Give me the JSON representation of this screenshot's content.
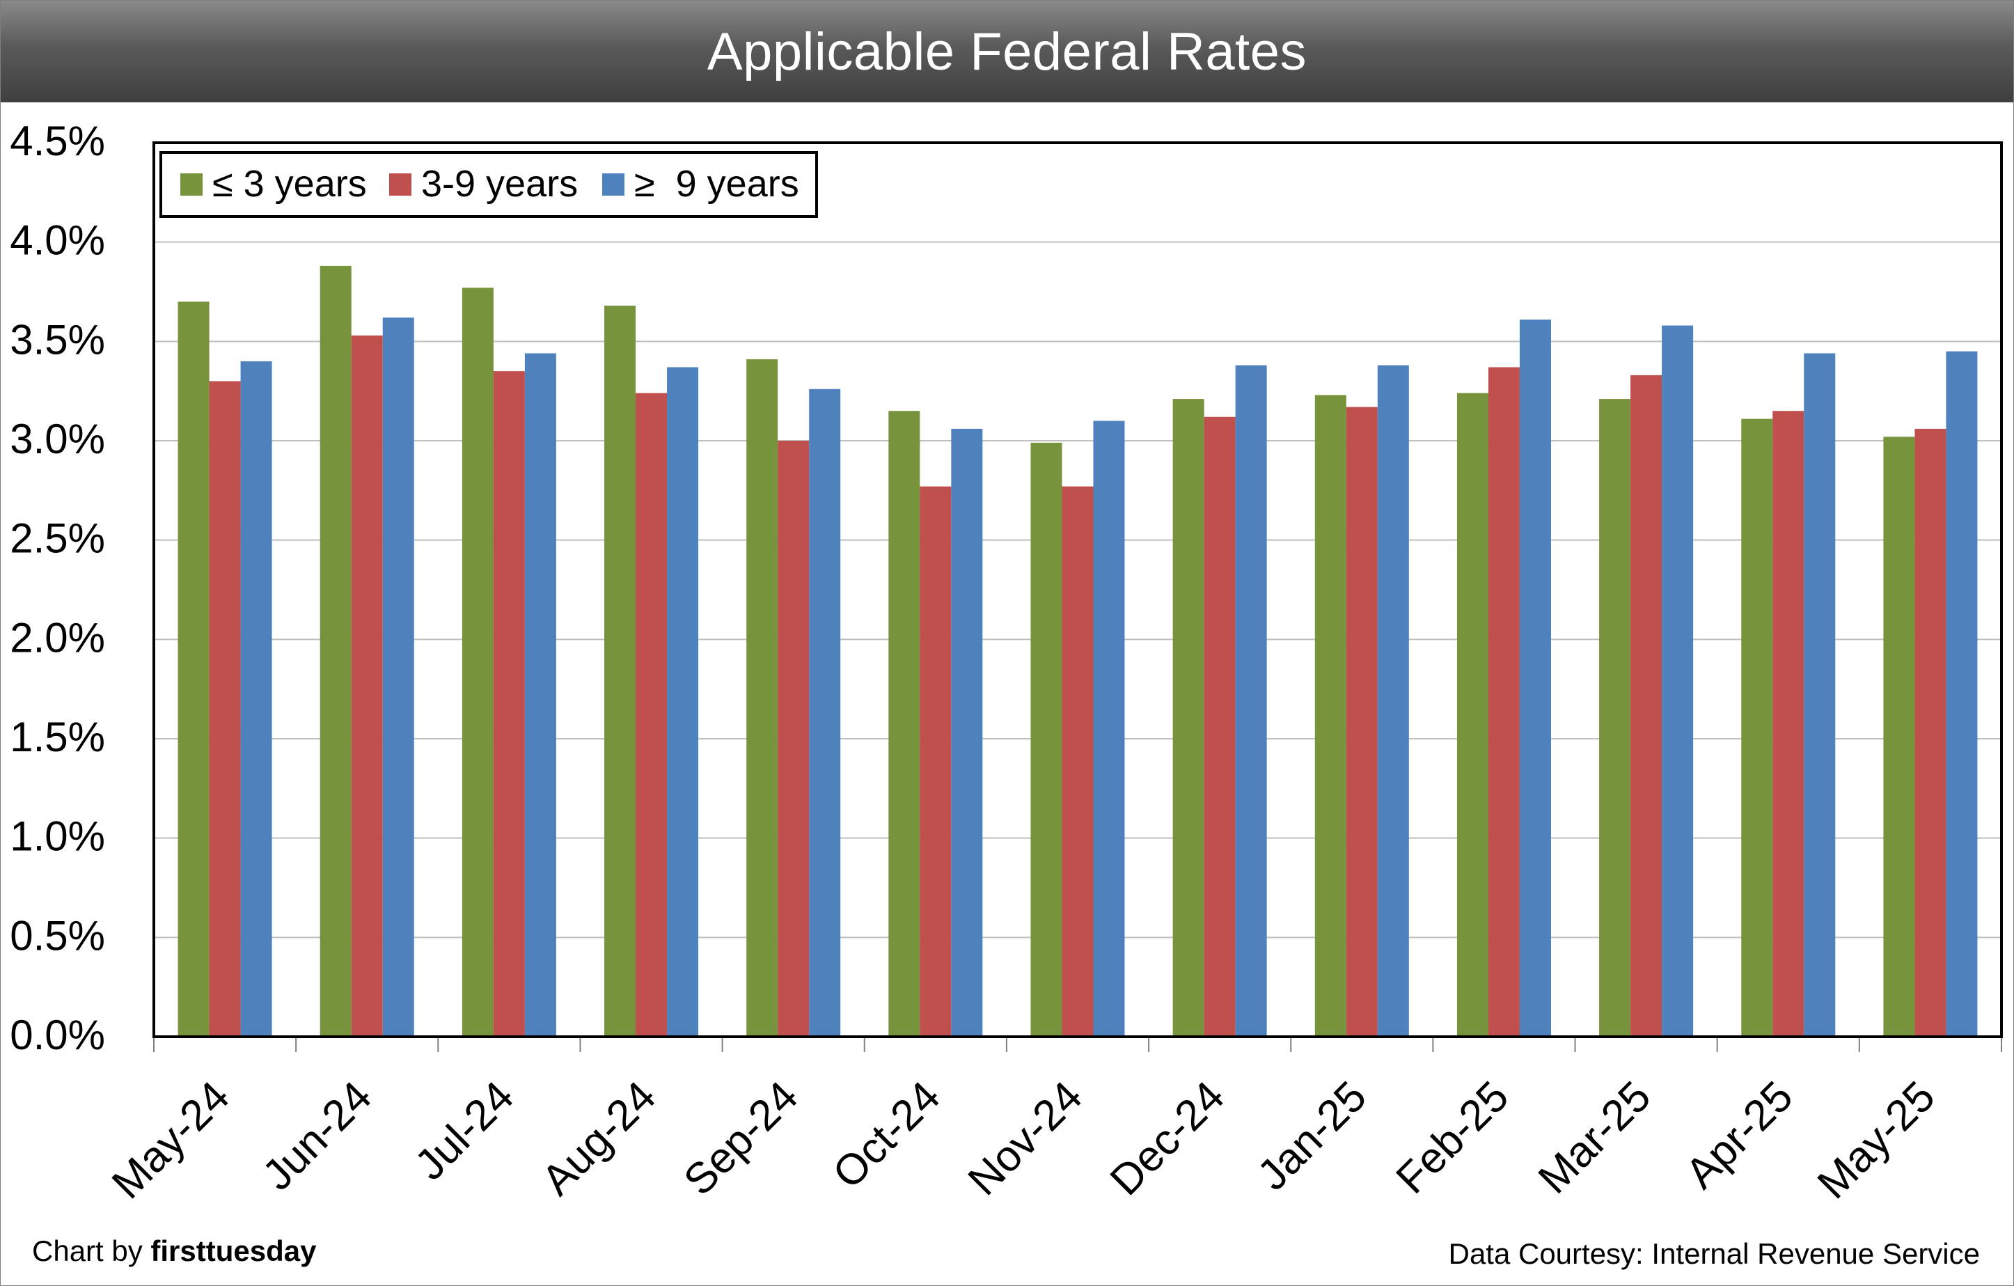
{
  "header": {
    "title": "Applicable Federal Rates"
  },
  "footer": {
    "credit_prefix": "Chart by ",
    "credit_brand": "firsttuesday",
    "source": "Data Courtesy: Internal Revenue Service"
  },
  "chart_data": {
    "type": "bar",
    "title": "Applicable Federal Rates",
    "xlabel": "",
    "ylabel": "",
    "ylim": [
      0,
      4.5
    ],
    "y_ticks": [
      "0.0%",
      "0.5%",
      "1.0%",
      "1.5%",
      "2.0%",
      "2.5%",
      "3.0%",
      "3.5%",
      "4.0%",
      "4.5%"
    ],
    "grid": true,
    "legend_position": "top-left",
    "categories": [
      "May-24",
      "Jun-24",
      "Jul-24",
      "Aug-24",
      "Sep-24",
      "Oct-24",
      "Nov-24",
      "Dec-24",
      "Jan-25",
      "Feb-25",
      "Mar-25",
      "Apr-25",
      "May-25"
    ],
    "series": [
      {
        "name": "≤ 3 years",
        "color": "#77933c",
        "values": [
          3.7,
          3.88,
          3.77,
          3.68,
          3.41,
          3.15,
          2.99,
          3.21,
          3.23,
          3.24,
          3.21,
          3.11,
          3.02
        ]
      },
      {
        "name": "3-9 years",
        "color": "#c0504d",
        "values": [
          3.3,
          3.53,
          3.35,
          3.24,
          3.0,
          2.77,
          2.77,
          3.12,
          3.17,
          3.37,
          3.33,
          3.15,
          3.06
        ]
      },
      {
        "name": "≥  9 years",
        "color": "#4f81bd",
        "values": [
          3.4,
          3.62,
          3.44,
          3.37,
          3.26,
          3.06,
          3.1,
          3.38,
          3.38,
          3.61,
          3.58,
          3.44,
          3.45
        ]
      }
    ]
  }
}
